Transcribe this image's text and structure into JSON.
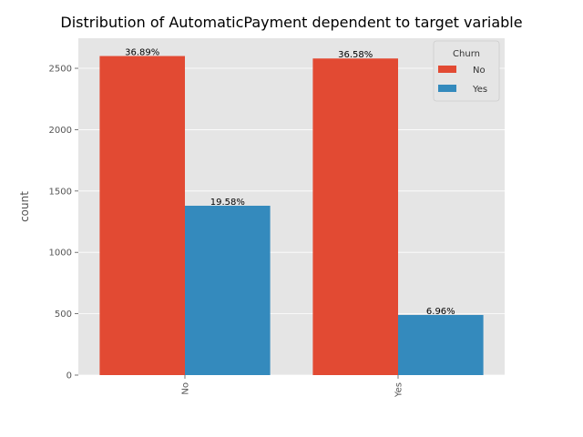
{
  "chart_data": {
    "type": "bar",
    "title": "Distribution of AutomaticPayment dependent to target variable",
    "xlabel": "",
    "ylabel": "count",
    "categories": [
      "No",
      "Yes"
    ],
    "series": [
      {
        "name": "No",
        "values": [
          2600,
          2580
        ],
        "labels": [
          "36.89%",
          "36.58%"
        ],
        "color": "#E24A33"
      },
      {
        "name": "Yes",
        "values": [
          1380,
          490
        ],
        "labels": [
          "19.58%",
          "6.96%"
        ],
        "color": "#348ABD"
      }
    ],
    "ylim": [
      0,
      2745
    ],
    "yticks": [
      0,
      500,
      1000,
      1500,
      2000,
      2500
    ],
    "legend": {
      "title": "Churn",
      "position": "top-right"
    },
    "grid": true,
    "style": {
      "background": "#E5E5E5",
      "grid_color": "#FFFFFF"
    }
  }
}
